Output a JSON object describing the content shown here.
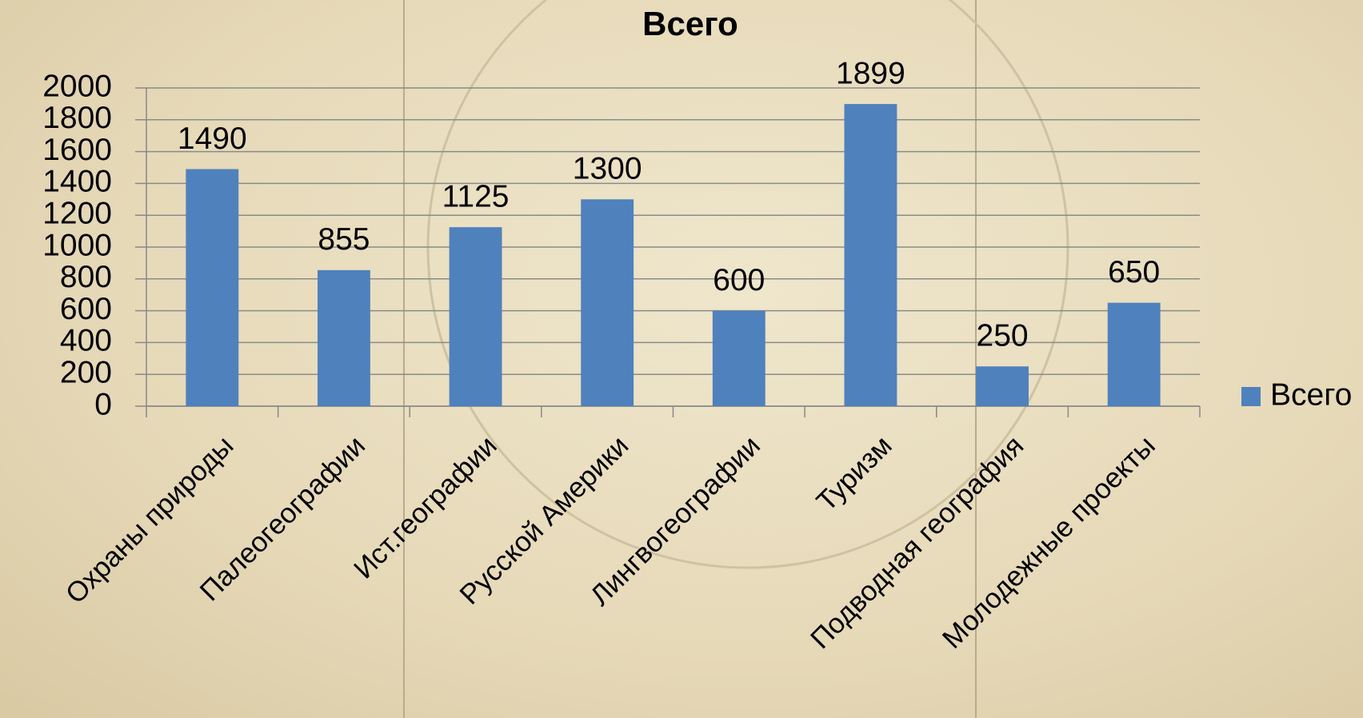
{
  "chart_data": {
    "type": "bar",
    "title": "Всего",
    "categories": [
      "Охраны природы",
      "Палеогеографии",
      "Ист.географии",
      "Русской Америки",
      "Лингвогеографии",
      "Туризм",
      "Подводная география",
      "Молодежные проекты"
    ],
    "series": [
      {
        "name": "Всего",
        "color": "#4f81bd",
        "values": [
          1490,
          855,
          1125,
          1300,
          600,
          1899,
          250,
          650
        ]
      }
    ],
    "ylim": [
      0,
      2000
    ],
    "yticks": [
      0,
      200,
      400,
      600,
      800,
      1000,
      1200,
      1400,
      1600,
      1800,
      2000
    ],
    "grid": true,
    "legend": "right"
  }
}
